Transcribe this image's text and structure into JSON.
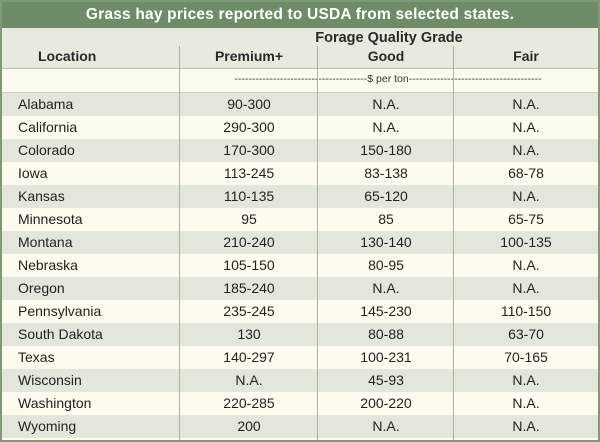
{
  "title": "Grass hay prices reported to USDA from selected states.",
  "header": {
    "group": "Forage Quality Grade",
    "location": "Location",
    "premium": "Premium+",
    "good": "Good",
    "fair": "Fair"
  },
  "units": "--------------------------------------$ per ton--------------------------------------",
  "colors": {
    "title_bg": "#6f8c68",
    "band": "#e3e6db",
    "paper": "#fdfbee"
  },
  "chart_data": {
    "type": "table",
    "title": "Grass hay prices reported to USDA from selected states.",
    "columns": [
      "Location",
      "Premium+",
      "Good",
      "Fair"
    ],
    "rows": [
      [
        "Alabama",
        "90-300",
        "N.A.",
        "N.A."
      ],
      [
        "California",
        "290-300",
        "N.A.",
        "N.A."
      ],
      [
        "Colorado",
        "170-300",
        "150-180",
        "N.A."
      ],
      [
        "Iowa",
        "113-245",
        "83-138",
        "68-78"
      ],
      [
        "Kansas",
        "110-135",
        "65-120",
        "N.A."
      ],
      [
        "Minnesota",
        "95",
        "85",
        "65-75"
      ],
      [
        "Montana",
        "210-240",
        "130-140",
        "100-135"
      ],
      [
        "Nebraska",
        "105-150",
        "80-95",
        "N.A."
      ],
      [
        "Oregon",
        "185-240",
        "N.A.",
        "N.A."
      ],
      [
        "Pennsylvania",
        "235-245",
        "145-230",
        "110-150"
      ],
      [
        "South Dakota",
        "130",
        "80-88",
        "63-70"
      ],
      [
        "Texas",
        "140-297",
        "100-231",
        "70-165"
      ],
      [
        "Wisconsin",
        "N.A.",
        "45-93",
        "N.A."
      ],
      [
        "Washington",
        "220-285",
        "200-220",
        "N.A."
      ],
      [
        "Wyoming",
        "200",
        "N.A.",
        "N.A."
      ]
    ]
  }
}
